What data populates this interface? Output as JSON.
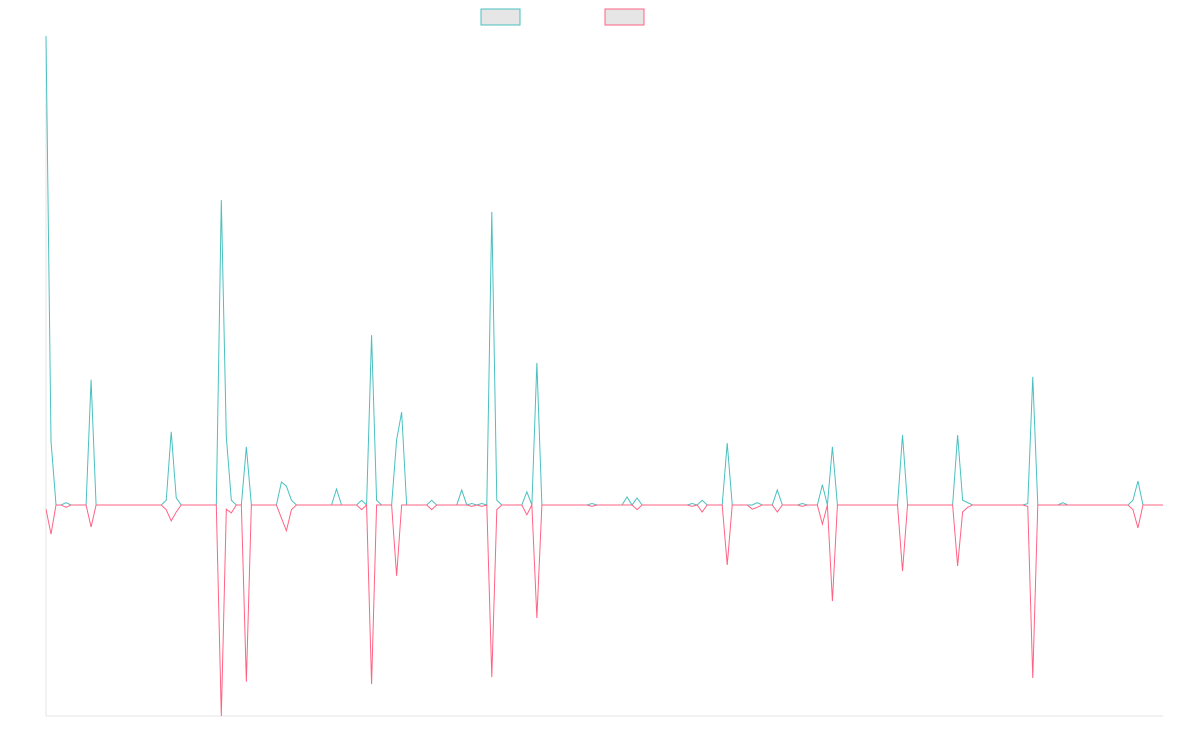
{
  "chart_data": {
    "type": "line",
    "ylim": [
      -45,
      100
    ],
    "series": [
      {
        "color": "#4bc0c0",
        "values": [
          100,
          13.6,
          0,
          0,
          0.5,
          0,
          0,
          0,
          0,
          26.7,
          0,
          0,
          0,
          0,
          0,
          0,
          0,
          0,
          0,
          0,
          0,
          0,
          0,
          0,
          1,
          15.6,
          1.5,
          0,
          0,
          0,
          0,
          0,
          0,
          0,
          0,
          65,
          14.5,
          1,
          0,
          0,
          12.4,
          0,
          0,
          0,
          0,
          0,
          0,
          4.9,
          4,
          1,
          0,
          0,
          0,
          0,
          0,
          0,
          0,
          0,
          3.4,
          0,
          0,
          0,
          0,
          1,
          0,
          36.2,
          1,
          0,
          0,
          0,
          13.9,
          19.8,
          0,
          0,
          0,
          0,
          0,
          1,
          0,
          0,
          0,
          0,
          0,
          3.2,
          0,
          0.3,
          0,
          0.3,
          0,
          62.5,
          1,
          0,
          0,
          0,
          0,
          0,
          2.8,
          0,
          30.3,
          0,
          0,
          0,
          0,
          0,
          0,
          0,
          0,
          0,
          0,
          0.3,
          0,
          0,
          0,
          0,
          0,
          0,
          1.7,
          0,
          1.5,
          0,
          0,
          0,
          0,
          0,
          0,
          0,
          0,
          0,
          0,
          0.3,
          0,
          1,
          0,
          0,
          0,
          0,
          13.2,
          0,
          0,
          0,
          0,
          0,
          0.5,
          0,
          0,
          0,
          3.2,
          0,
          0,
          0,
          0,
          0.3,
          0,
          0,
          0,
          4.3,
          0,
          12.4,
          0,
          0,
          0,
          0,
          0,
          0,
          0,
          0,
          0,
          0,
          0,
          0,
          0,
          14.9,
          0,
          0,
          0,
          0,
          0,
          0,
          0,
          0,
          0,
          0,
          14.9,
          1,
          0.5,
          0,
          0,
          0,
          0,
          0,
          0,
          0,
          0,
          0,
          0,
          0,
          0.3,
          27.3,
          0,
          0,
          0,
          0,
          0,
          0.5,
          0,
          0,
          0,
          0,
          0,
          0,
          0,
          0,
          0,
          0,
          0,
          0,
          0,
          1,
          5.1,
          0,
          0,
          0,
          0,
          0
        ]
      },
      {
        "color": "#ff6384",
        "values": [
          -0.9,
          -6.2,
          0,
          0,
          -0.5,
          0,
          0,
          0,
          0,
          -4.7,
          0,
          0,
          0,
          0,
          0,
          0,
          0,
          0,
          0,
          0,
          0,
          0,
          0,
          0,
          -1,
          -3.4,
          -1.5,
          0,
          0,
          0,
          0,
          0,
          0,
          0,
          0,
          -45,
          -0.9,
          -1.7,
          0,
          0,
          -37.7,
          0,
          0,
          0,
          0,
          0,
          0,
          -2.8,
          -5.5,
          -1,
          0,
          0,
          0,
          0,
          0,
          0,
          0,
          0,
          0,
          0,
          0,
          0,
          0,
          -1,
          0,
          -38.2,
          0,
          0,
          0,
          0,
          -15.1,
          0,
          0,
          0,
          0,
          0,
          0,
          -1,
          0,
          0,
          0,
          0,
          0,
          0,
          0,
          -0.3,
          0,
          -0.3,
          0,
          -36.7,
          -1,
          0,
          0,
          0,
          0,
          0,
          -2.1,
          0,
          -24.1,
          0,
          0,
          0,
          0,
          0,
          0,
          0,
          0,
          0,
          0,
          -0.3,
          0,
          0,
          0,
          0,
          0,
          0,
          0,
          0,
          -1,
          0,
          0,
          0,
          0,
          0,
          0,
          0,
          0,
          0,
          0,
          -0.3,
          0,
          -1.5,
          0,
          0,
          0,
          0,
          -12.8,
          0,
          0,
          0,
          0,
          -0.9,
          -0.5,
          0,
          0,
          0,
          -1.5,
          0,
          0,
          0,
          0,
          -0.3,
          0,
          0,
          0,
          -4.1,
          0,
          -20.5,
          0,
          0,
          0,
          0,
          0,
          0,
          0,
          0,
          0,
          0,
          0,
          0,
          0,
          -14.1,
          0,
          0,
          0,
          0,
          0,
          0,
          0,
          0,
          0,
          0,
          -13,
          -1.5,
          -0.5,
          0,
          0,
          0,
          0,
          0,
          0,
          0,
          0,
          0,
          0,
          0,
          -0.3,
          -36.9,
          0,
          0,
          0,
          0,
          0,
          0,
          0,
          0,
          0,
          0,
          0,
          0,
          0,
          0,
          0,
          0,
          0,
          0,
          0,
          -1,
          -4.9,
          0,
          0,
          0,
          0,
          0
        ]
      }
    ]
  }
}
